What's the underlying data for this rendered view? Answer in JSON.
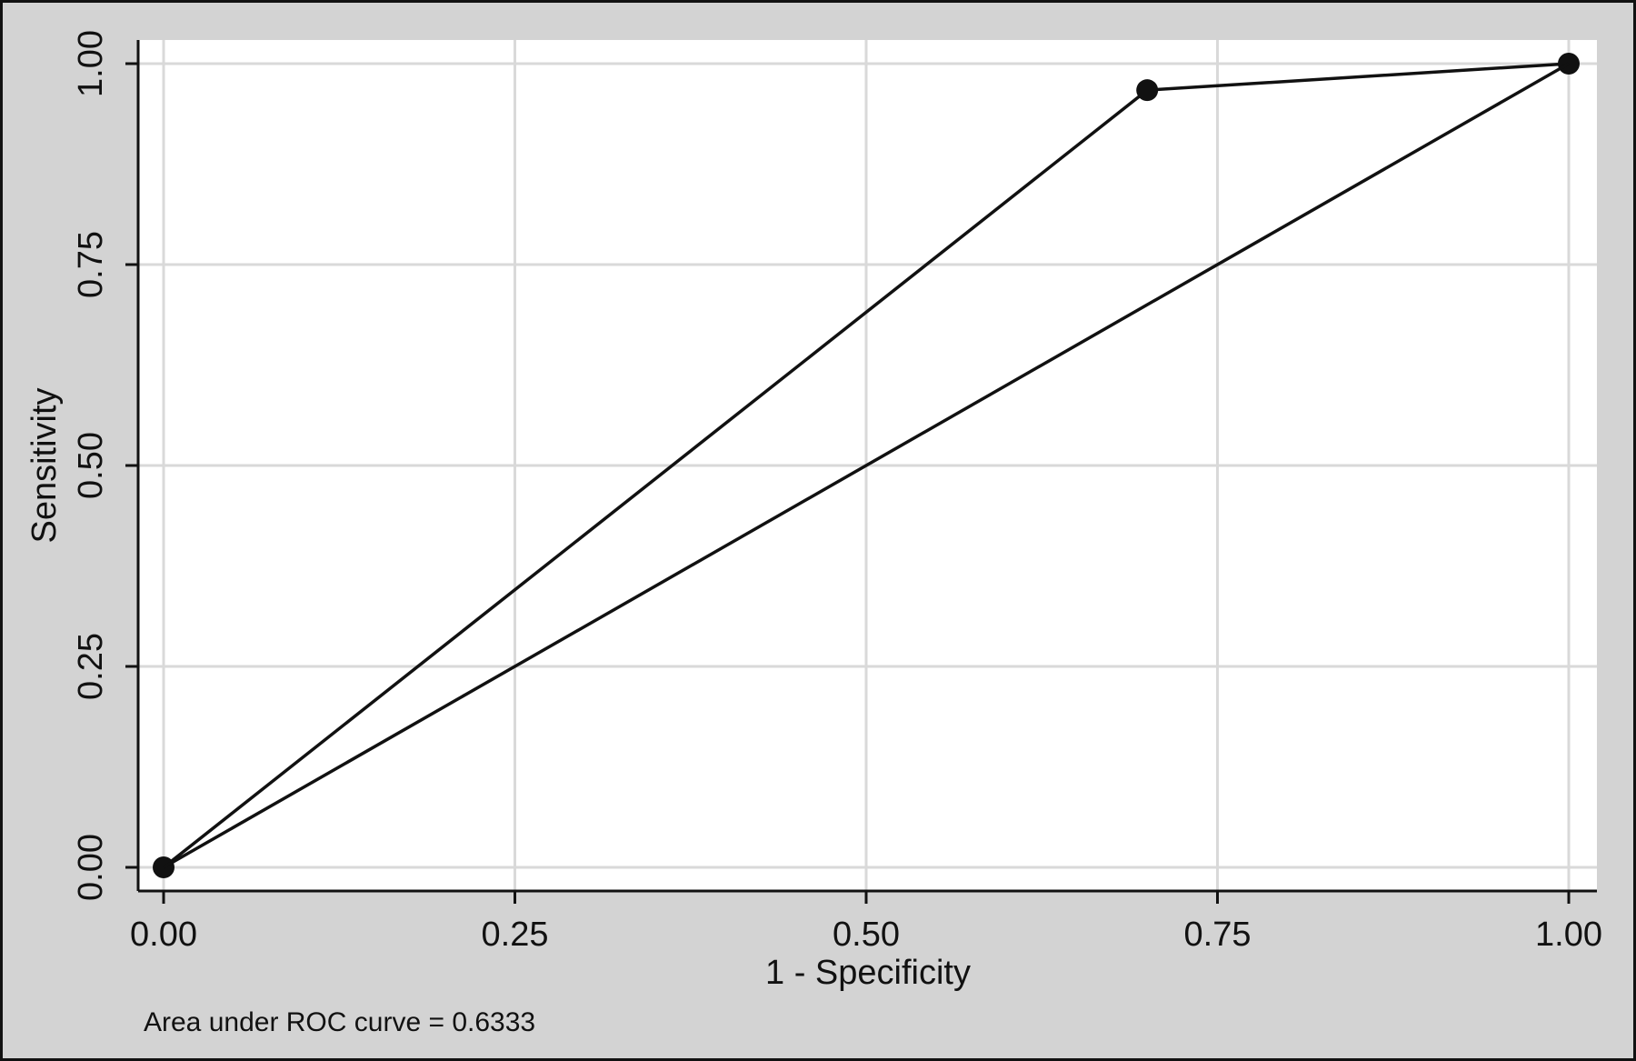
{
  "chart_data": {
    "type": "line",
    "xlabel": "1 - Specificity",
    "ylabel": "Sensitivity",
    "xlim": [
      0,
      1
    ],
    "ylim": [
      0,
      1
    ],
    "grid": true,
    "x_ticks": [
      "0.00",
      "0.25",
      "0.50",
      "0.75",
      "1.00"
    ],
    "y_ticks": [
      "0.00",
      "0.25",
      "0.50",
      "0.75",
      "1.00"
    ],
    "x_tick_values": [
      0,
      0.25,
      0.5,
      0.75,
      1
    ],
    "y_tick_values": [
      0,
      0.25,
      0.5,
      0.75,
      1
    ],
    "series": [
      {
        "type": "line",
        "markers": true,
        "x": [
          0,
          0.7,
          1
        ],
        "y": [
          0,
          0.967,
          1
        ]
      },
      {
        "type": "line",
        "markers": false,
        "x": [
          0,
          1
        ],
        "y": [
          0,
          1
        ]
      }
    ],
    "note": "Area under ROC curve = 0.6333"
  },
  "colors": {
    "outer_background": "#d3d3d3",
    "plot_background": "#ffffff",
    "grid": "#d9d9d9",
    "line": "#111111"
  }
}
